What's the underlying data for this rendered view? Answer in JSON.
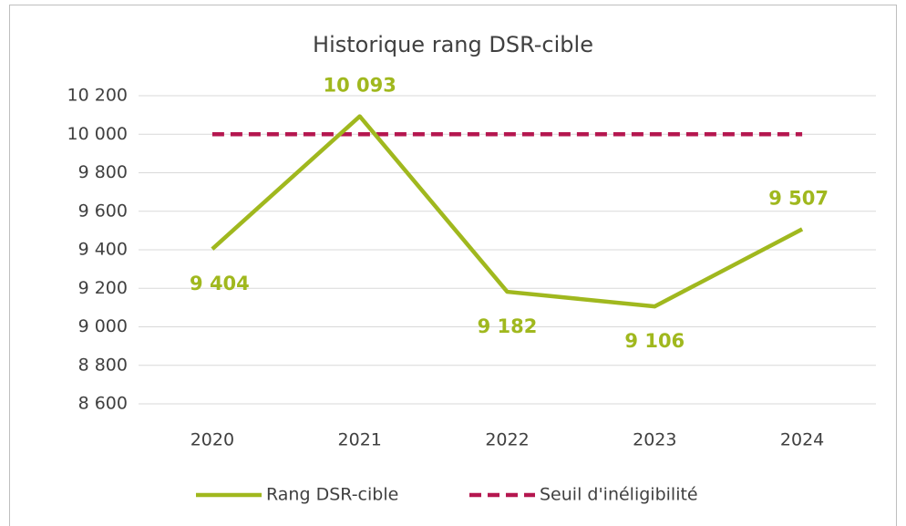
{
  "chart_data": {
    "type": "line",
    "title": "Historique rang DSR-cible",
    "categories": [
      "2020",
      "2021",
      "2022",
      "2023",
      "2024"
    ],
    "series": [
      {
        "name": "Rang DSR-cible",
        "color": "#a0b81e",
        "values": [
          9404,
          10093,
          9182,
          9106,
          9507
        ],
        "value_labels": [
          "9 404",
          "10 093",
          "9 182",
          "9 106",
          "9 507"
        ]
      },
      {
        "name": "Seuil d'inéligibilité",
        "color": "#b5174f",
        "dashed": true,
        "values": [
          10000,
          10000,
          10000,
          10000,
          10000
        ]
      }
    ],
    "ylim": [
      8600,
      10200
    ],
    "yticks": [
      {
        "value": 8600,
        "label": "8 600"
      },
      {
        "value": 8800,
        "label": "8 800"
      },
      {
        "value": 9000,
        "label": "9 000"
      },
      {
        "value": 9200,
        "label": "9 200"
      },
      {
        "value": 9400,
        "label": "9 400"
      },
      {
        "value": 9600,
        "label": "9 600"
      },
      {
        "value": 9800,
        "label": "9 800"
      },
      {
        "value": 10000,
        "label": "10 000"
      },
      {
        "value": 10200,
        "label": "10 200"
      }
    ],
    "grid": true,
    "legend": "bottom"
  }
}
